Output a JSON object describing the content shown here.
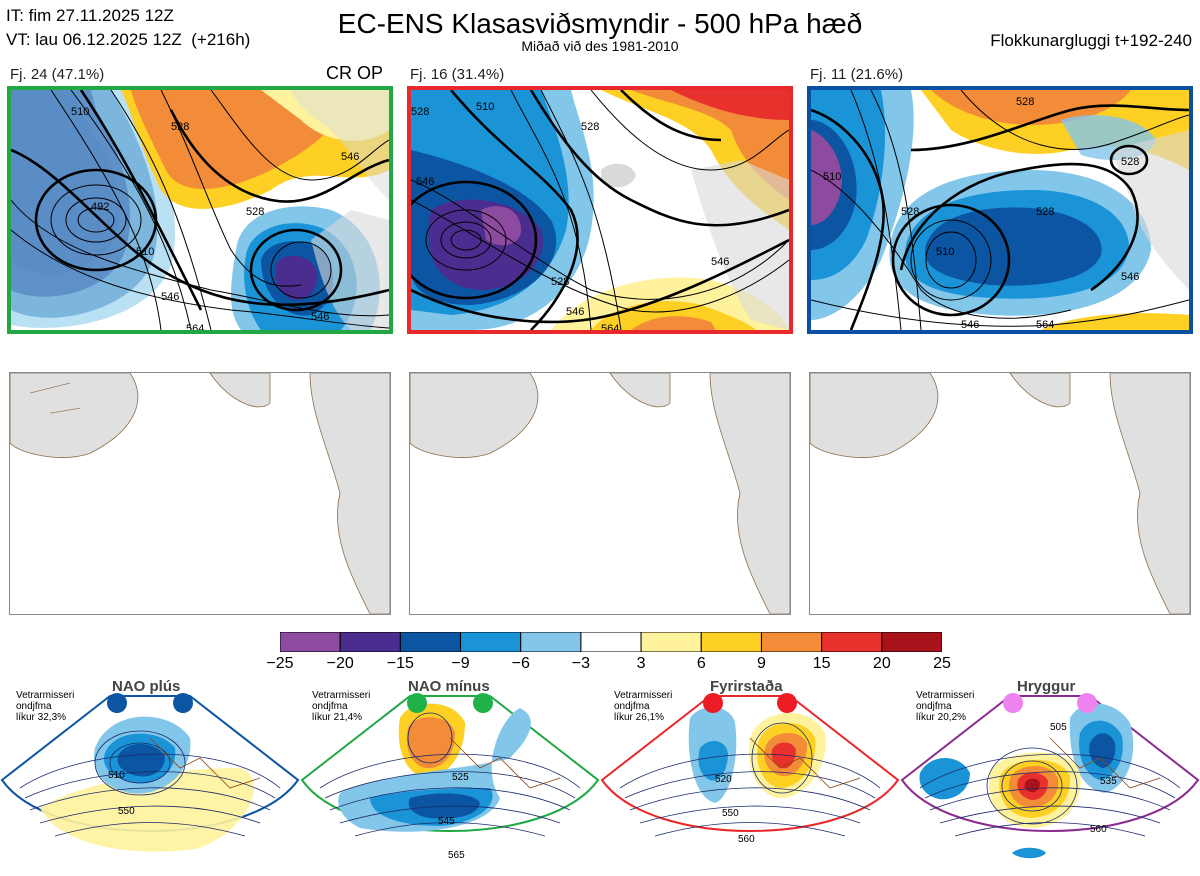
{
  "header": {
    "it_line": "IT: fim 27.11.2025 12Z",
    "vt_line": "VT: lau 06.12.2025 12Z  (+216h)",
    "title": "EC-ENS Klasasviðsmyndir - 500 hPa hæð",
    "subtitle": "Miðað við des 1981-2010",
    "window": "Flokkunargluggi t+192-240"
  },
  "clusters": [
    {
      "label": "Fj. 24 (47.1%)",
      "tag": "CR OP",
      "border_color": "#21a845",
      "contour_labels": [
        "510",
        "528",
        "546",
        "492",
        "528",
        "510",
        "546",
        "546",
        "564"
      ]
    },
    {
      "label": "Fj. 16 (31.4%)",
      "tag": "",
      "border_color": "#e8282b",
      "contour_labels": [
        "510",
        "528",
        "528",
        "546",
        "528",
        "546",
        "546",
        "564"
      ]
    },
    {
      "label": "Fj. 11 (21.6%)",
      "tag": "",
      "border_color": "#0b4fa0",
      "contour_labels": [
        "528",
        "528",
        "510",
        "528",
        "528",
        "510",
        "546",
        "546",
        "564"
      ]
    }
  ],
  "colorbar": {
    "ticks": [
      "−25",
      "−20",
      "−15",
      "−9",
      "−6",
      "−3",
      "3",
      "6",
      "9",
      "15",
      "20",
      "25"
    ],
    "colors": [
      "#8d4b9f",
      "#4a2d8f",
      "#0b55a3",
      "#1a94d7",
      "#82c6ea",
      "#ffffff",
      "#fff29c",
      "#fdd023",
      "#f28c38",
      "#e8312c",
      "#a8131b"
    ]
  },
  "regimes": [
    {
      "name": "NAO plús",
      "stats": "Vetrarmisseri\nondjfma\nlíkur 32,3%",
      "color": "#0b55a3",
      "dot_color": "#0b55a3",
      "labels": [
        "510",
        "550"
      ]
    },
    {
      "name": "NAO mínus",
      "stats": "Vetrarmisseri\nondjfma\nlíkur 21,4%",
      "color": "#21a845",
      "dot_color": "#21b14b",
      "labels": [
        "525",
        "545",
        "565"
      ]
    },
    {
      "name": "Fyrirstaða",
      "stats": "Vetrarmisseri\nondjfma\nlíkur 26,1%",
      "color": "#e8282b",
      "dot_color": "#ec1c24",
      "labels": [
        "520",
        "550",
        "560"
      ]
    },
    {
      "name": "Hryggur",
      "stats": "Vetrarmisseri\nondjfma\nlíkur 20,2%",
      "color": "#8b2b8f",
      "dot_color": "#ee82ee",
      "labels": [
        "505",
        "535",
        "560"
      ]
    }
  ]
}
